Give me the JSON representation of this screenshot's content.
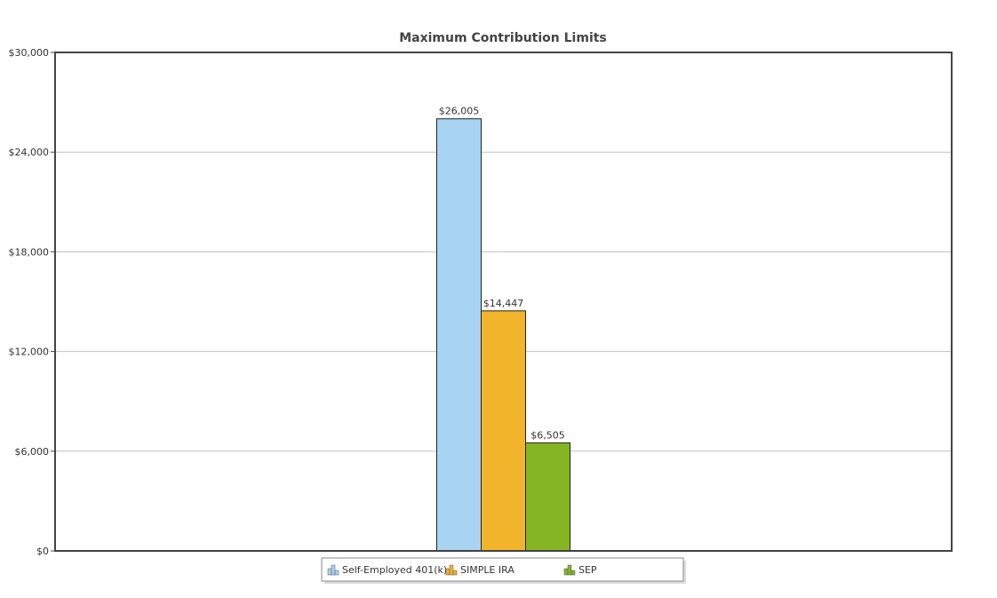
{
  "chart_data": {
    "type": "bar",
    "title": "Maximum Contribution Limits",
    "xlabel": "",
    "ylabel": "",
    "ylim": [
      0,
      30000
    ],
    "yticks": [
      {
        "value": 0,
        "label": "$0"
      },
      {
        "value": 6000,
        "label": "$6,000"
      },
      {
        "value": 12000,
        "label": "$12,000"
      },
      {
        "value": 18000,
        "label": "$18,000"
      },
      {
        "value": 24000,
        "label": "$24,000"
      },
      {
        "value": 30000,
        "label": "$30,000"
      }
    ],
    "grid": true,
    "legend_position": "bottom",
    "series": [
      {
        "name": "Self-Employed 401(k)",
        "value": 26005,
        "label": "$26,005",
        "color": "#a8d4f2"
      },
      {
        "name": "SIMPLE IRA",
        "value": 14447,
        "label": "$14,447",
        "color": "#f2b42b"
      },
      {
        "name": "SEP",
        "value": 6505,
        "label": "$6,505",
        "color": "#86b524"
      }
    ]
  }
}
